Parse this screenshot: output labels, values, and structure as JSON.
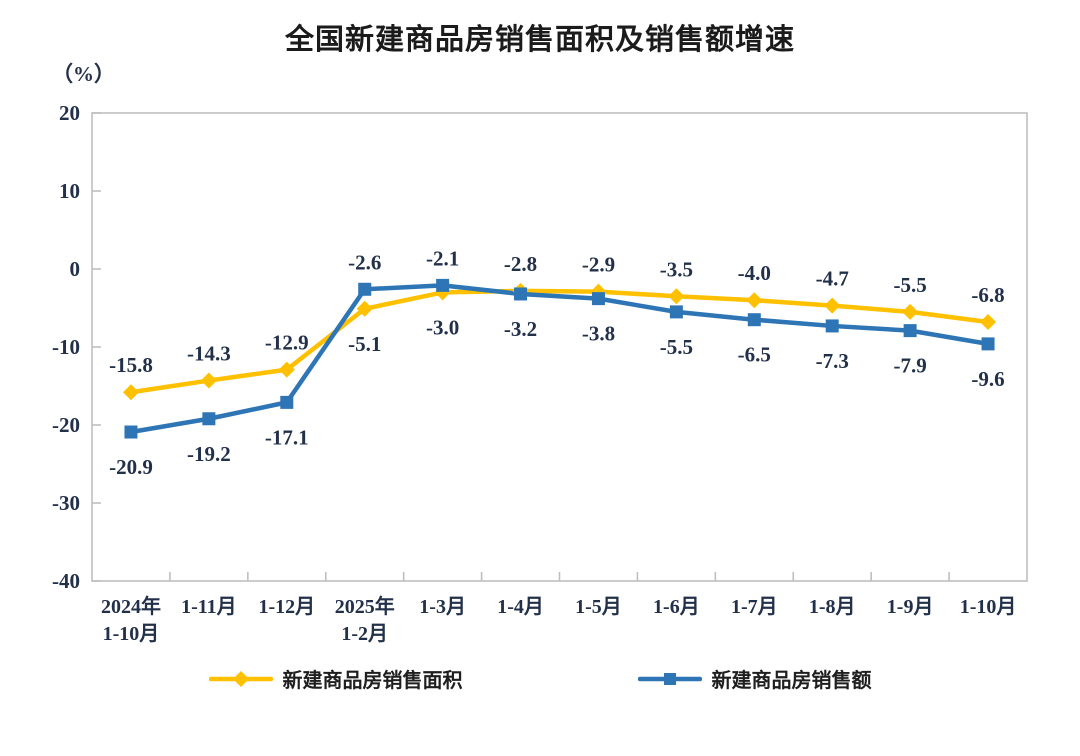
{
  "title": "全国新建商品房销售面积及销售额增速",
  "y_unit_label": "（%）",
  "chart_data": {
    "type": "line",
    "categories": [
      [
        "2024年",
        "1-10月"
      ],
      [
        "1-11月"
      ],
      [
        "1-12月"
      ],
      [
        "2025年",
        "1-2月"
      ],
      [
        "1-3月"
      ],
      [
        "1-4月"
      ],
      [
        "1-5月"
      ],
      [
        "1-6月"
      ],
      [
        "1-7月"
      ],
      [
        "1-8月"
      ],
      [
        "1-9月"
      ],
      [
        "1-10月"
      ]
    ],
    "series": [
      {
        "name": "新建商品房销售面积",
        "marker": "diamond",
        "color": "#FFC000",
        "values": [
          -15.8,
          -14.3,
          -12.9,
          -5.1,
          -3.0,
          -2.8,
          -2.9,
          -3.5,
          -4.0,
          -4.7,
          -5.5,
          -6.8
        ]
      },
      {
        "name": "新建商品房销售额",
        "marker": "square",
        "color": "#2E75B6",
        "values": [
          -20.9,
          -19.2,
          -17.1,
          -2.6,
          -2.1,
          -3.2,
          -3.8,
          -5.5,
          -6.5,
          -7.3,
          -7.9,
          -9.6
        ]
      }
    ],
    "ylabel": "（%）",
    "ylim": [
      -40,
      20
    ],
    "y_ticks": [
      20,
      10,
      0,
      -10,
      -20,
      -30,
      -40
    ],
    "grid": false,
    "data_labels": true,
    "legend_position": "bottom"
  },
  "styles": {
    "text_color": "#22304A",
    "axis_color": "#BFBFBF",
    "title_color": "#1B1B1B",
    "background": "#FFFFFF"
  }
}
